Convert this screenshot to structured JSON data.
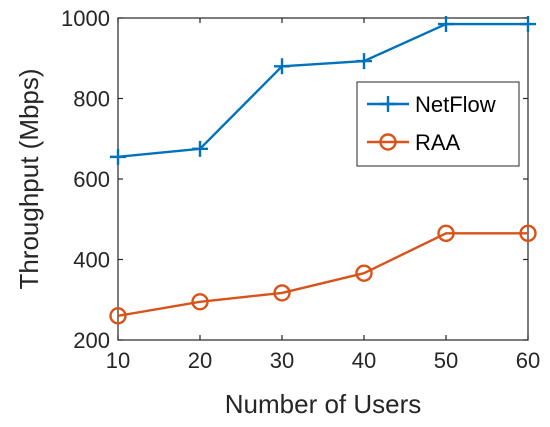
{
  "chart_data": {
    "type": "line",
    "title": "",
    "xlabel": "Number of Users",
    "ylabel": "Throughput (Mbps)",
    "x": [
      10,
      20,
      30,
      40,
      50,
      60
    ],
    "xlim": [
      10,
      60
    ],
    "ylim": [
      200,
      1000
    ],
    "xticks": [
      "10",
      "20",
      "30",
      "40",
      "50",
      "60"
    ],
    "yticks": [
      "200",
      "400",
      "600",
      "800",
      "1000"
    ],
    "grid": false,
    "legend_position": "upper-right",
    "series": [
      {
        "name": "NetFlow",
        "values": [
          655,
          675,
          880,
          893,
          985,
          985
        ],
        "color": "#0072BD",
        "marker": "plus"
      },
      {
        "name": "RAA",
        "values": [
          260,
          295,
          317,
          366,
          465,
          465
        ],
        "color": "#D95319",
        "marker": "circle"
      }
    ]
  }
}
